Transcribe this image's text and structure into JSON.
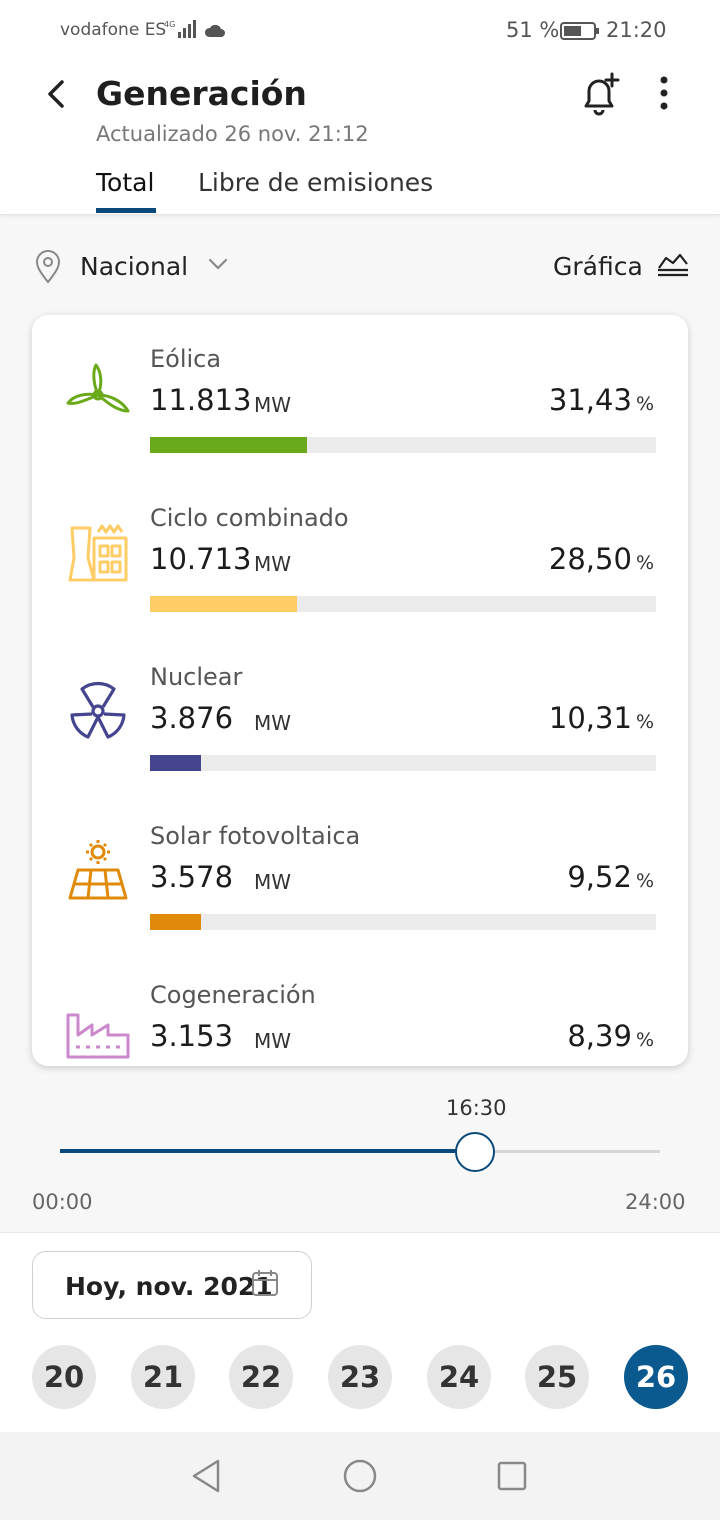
{
  "status": {
    "carrier": "vodafone ES",
    "battery": "51 %",
    "time": "21:20"
  },
  "header": {
    "title": "Generación",
    "updated": "Actualizado 26 nov. 21:12",
    "tabs": [
      {
        "label": "Total",
        "active": true
      },
      {
        "label": "Libre de emisiones",
        "active": false
      }
    ]
  },
  "filter": {
    "location": "Nacional",
    "view_label": "Gráfica"
  },
  "items": [
    {
      "name": "Eólica",
      "value": "11.813",
      "unit": "MW",
      "percent": "31,43",
      "percent_sign": "%",
      "bar_fraction": 0.31,
      "color": "#6aaa1a",
      "icon": "wind-turbine-icon"
    },
    {
      "name": "Ciclo combinado",
      "value": "10.713",
      "unit": "MW",
      "percent": "28,50",
      "percent_sign": "%",
      "bar_fraction": 0.29,
      "color": "#ffcc66",
      "icon": "combined-cycle-icon"
    },
    {
      "name": "Nuclear",
      "value": "3.876",
      "unit": "MW",
      "percent": "10,31",
      "percent_sign": "%",
      "bar_fraction": 0.1,
      "color": "#45448f",
      "icon": "nuclear-icon"
    },
    {
      "name": "Solar fotovoltaica",
      "value": "3.578",
      "unit": "MW",
      "percent": "9,52",
      "percent_sign": "%",
      "bar_fraction": 0.1,
      "color": "#e08a0a",
      "icon": "solar-panel-icon"
    },
    {
      "name": "Cogeneración",
      "value": "3.153",
      "unit": "MW",
      "percent": "8,39",
      "percent_sign": "%",
      "bar_fraction": 0.08,
      "color": "#cc88cc",
      "icon": "cogeneration-icon"
    }
  ],
  "timeline": {
    "current": "16:30",
    "start": "00:00",
    "end": "24:00",
    "position_fraction": 0.6875
  },
  "date": {
    "label": "Hoy, nov. 2021"
  },
  "days": [
    "20",
    "21",
    "22",
    "23",
    "24",
    "25",
    "26"
  ],
  "selected_day": "26"
}
